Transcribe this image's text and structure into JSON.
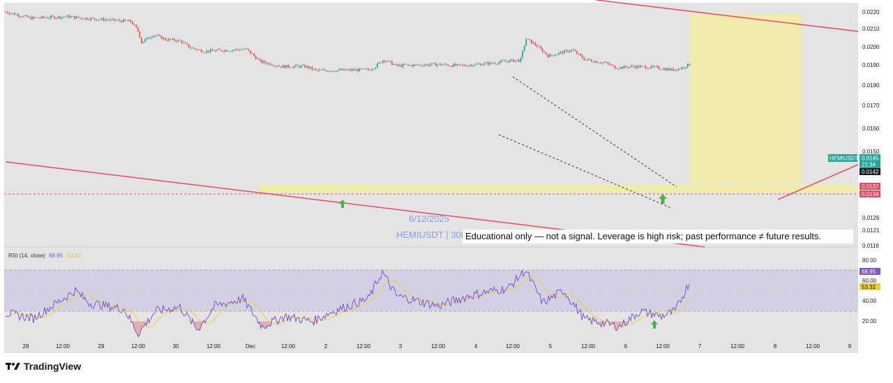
{
  "chart_data": {
    "type": "candlestick",
    "symbol": "HEMIUSDT",
    "timeframe_label": "HEMIUSDT | 30M",
    "date_label": "6/12/2025",
    "disclaimer": "Educational only — not a signal. Leverage is high risk; past performance ≠ future results.",
    "y_ticks": [
      "0.0220",
      "0.0210",
      "0.0200",
      "0.0190",
      "0.0180",
      "0.0170",
      "0.0160",
      "0.0150",
      "0.0126",
      "0.0121",
      "0.0116"
    ],
    "x_ticks": [
      "28",
      "12:00",
      "29",
      "12:00",
      "30",
      "12:00",
      "Dec",
      "12:00",
      "2",
      "12:00",
      "3",
      "12:00",
      "4",
      "12:00",
      "5",
      "12:00",
      "6",
      "12:00",
      "7",
      "12:00",
      "8",
      "12:00",
      "9"
    ],
    "price_anchors": [
      {
        "t": 0,
        "p": 0.022
      },
      {
        "t": 35,
        "p": 0.0211
      },
      {
        "t": 90,
        "p": 0.0213
      },
      {
        "t": 110,
        "p": 0.0211
      },
      {
        "t": 180,
        "p": 0.0206
      },
      {
        "t": 190,
        "p": 0.0192
      },
      {
        "t": 195,
        "p": 0.0176
      },
      {
        "t": 212,
        "p": 0.0187
      },
      {
        "t": 230,
        "p": 0.018
      },
      {
        "t": 250,
        "p": 0.0178
      },
      {
        "t": 265,
        "p": 0.0168
      },
      {
        "t": 285,
        "p": 0.0163
      },
      {
        "t": 345,
        "p": 0.0166
      },
      {
        "t": 365,
        "p": 0.0148
      },
      {
        "t": 395,
        "p": 0.0141
      },
      {
        "t": 430,
        "p": 0.0141
      },
      {
        "t": 445,
        "p": 0.0135
      },
      {
        "t": 520,
        "p": 0.0136
      },
      {
        "t": 530,
        "p": 0.0141
      },
      {
        "t": 542,
        "p": 0.0151
      },
      {
        "t": 560,
        "p": 0.0142
      },
      {
        "t": 620,
        "p": 0.0144
      },
      {
        "t": 650,
        "p": 0.0142
      },
      {
        "t": 700,
        "p": 0.0146
      },
      {
        "t": 720,
        "p": 0.0149
      },
      {
        "t": 738,
        "p": 0.015
      },
      {
        "t": 746,
        "p": 0.0181
      },
      {
        "t": 760,
        "p": 0.0172
      },
      {
        "t": 778,
        "p": 0.0156
      },
      {
        "t": 800,
        "p": 0.0162
      },
      {
        "t": 812,
        "p": 0.0165
      },
      {
        "t": 830,
        "p": 0.0151
      },
      {
        "t": 860,
        "p": 0.0146
      },
      {
        "t": 875,
        "p": 0.0139
      },
      {
        "t": 900,
        "p": 0.0141
      },
      {
        "t": 935,
        "p": 0.0139
      },
      {
        "t": 955,
        "p": 0.0136
      },
      {
        "t": 970,
        "p": 0.0139
      },
      {
        "t": 982,
        "p": 0.0145
      }
    ],
    "rsi": {
      "label": "RSI (14, close)",
      "value": "68.95",
      "ma_value": "53.32",
      "levels": [
        "80.00",
        "60.00",
        "40.00",
        "20.00"
      ],
      "anchors": [
        {
          "t": 0,
          "v": 38
        },
        {
          "t": 40,
          "v": 33
        },
        {
          "t": 100,
          "v": 60
        },
        {
          "t": 120,
          "v": 48
        },
        {
          "t": 170,
          "v": 42
        },
        {
          "t": 190,
          "v": 18
        },
        {
          "t": 215,
          "v": 40
        },
        {
          "t": 250,
          "v": 44
        },
        {
          "t": 275,
          "v": 22
        },
        {
          "t": 300,
          "v": 45
        },
        {
          "t": 340,
          "v": 52
        },
        {
          "t": 368,
          "v": 25
        },
        {
          "t": 400,
          "v": 35
        },
        {
          "t": 440,
          "v": 30
        },
        {
          "t": 470,
          "v": 40
        },
        {
          "t": 520,
          "v": 52
        },
        {
          "t": 540,
          "v": 78
        },
        {
          "t": 560,
          "v": 55
        },
        {
          "t": 620,
          "v": 45
        },
        {
          "t": 665,
          "v": 55
        },
        {
          "t": 700,
          "v": 60
        },
        {
          "t": 720,
          "v": 62
        },
        {
          "t": 745,
          "v": 80
        },
        {
          "t": 770,
          "v": 48
        },
        {
          "t": 800,
          "v": 60
        },
        {
          "t": 830,
          "v": 32
        },
        {
          "t": 880,
          "v": 25
        },
        {
          "t": 910,
          "v": 40
        },
        {
          "t": 940,
          "v": 35
        },
        {
          "t": 960,
          "v": 40
        },
        {
          "t": 980,
          "v": 68
        }
      ]
    },
    "price_labels": {
      "current_symbol": "HEMIUSDT",
      "current_price": "0.0145",
      "countdown": "21:34",
      "prev_close": "0.0142",
      "support_top": "0.0137",
      "support_bottom": "0.0134"
    },
    "colors": {
      "up": "#26a69a",
      "down": "#ef5350",
      "trendline": "#e84a5f",
      "zone": "#f5ee9a",
      "rsi_line": "#7e57c2",
      "rsi_ma": "#e9d03c",
      "arrow": "#4caf50"
    }
  },
  "brand": {
    "name": "TradingView"
  }
}
